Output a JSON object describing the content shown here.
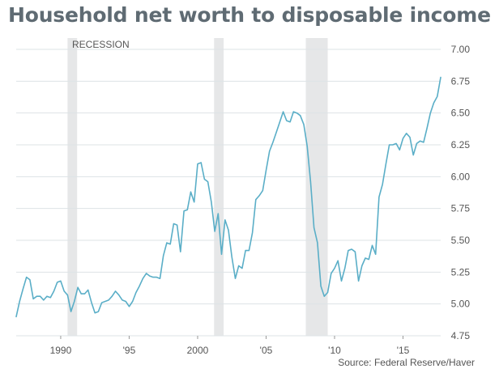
{
  "title": "Household net worth to disposable income",
  "source": "Source: Federal Reserve/Haver",
  "colors": {
    "line": "#5aaec7",
    "recession": "#e6e7e8",
    "grid": "#dde3e6",
    "title": "#5f6b73",
    "text": "#555555"
  },
  "chart_data": {
    "type": "line",
    "title": "Household net worth to disposable income",
    "xlabel": "",
    "ylabel": "",
    "xlim": [
      1986.75,
      2017.75
    ],
    "ylim": [
      4.75,
      7.0
    ],
    "grid": true,
    "x_ticks": [
      {
        "value": 1990,
        "label": "1990"
      },
      {
        "value": 1995,
        "label": "'95"
      },
      {
        "value": 2000,
        "label": "2000"
      },
      {
        "value": 2005,
        "label": "'05"
      },
      {
        "value": 2010,
        "label": "'10"
      },
      {
        "value": 2015,
        "label": "'15"
      }
    ],
    "y_ticks": [
      {
        "value": 4.75,
        "label": "4.75"
      },
      {
        "value": 5.0,
        "label": "5.00"
      },
      {
        "value": 5.25,
        "label": "5.25"
      },
      {
        "value": 5.5,
        "label": "5.50"
      },
      {
        "value": 5.75,
        "label": "5.75"
      },
      {
        "value": 6.0,
        "label": "6.00"
      },
      {
        "value": 6.25,
        "label": "6.25"
      },
      {
        "value": 6.5,
        "label": "6.50"
      },
      {
        "value": 6.75,
        "label": "6.75"
      },
      {
        "value": 7.0,
        "label": "7.00"
      }
    ],
    "recession_label": "RECESSION",
    "recessions": [
      {
        "start": 1990.5,
        "end": 1991.2
      },
      {
        "start": 2001.2,
        "end": 2001.9
      },
      {
        "start": 2007.9,
        "end": 2009.5
      }
    ],
    "series": [
      {
        "name": "Household net worth to disposable income",
        "points": [
          [
            1986.75,
            4.9
          ],
          [
            1987.0,
            5.02
          ],
          [
            1987.25,
            5.12
          ],
          [
            1987.5,
            5.21
          ],
          [
            1987.75,
            5.19
          ],
          [
            1988.0,
            5.04
          ],
          [
            1988.25,
            5.06
          ],
          [
            1988.5,
            5.06
          ],
          [
            1988.75,
            5.03
          ],
          [
            1989.0,
            5.06
          ],
          [
            1989.25,
            5.05
          ],
          [
            1989.5,
            5.1
          ],
          [
            1989.75,
            5.17
          ],
          [
            1990.0,
            5.18
          ],
          [
            1990.25,
            5.1
          ],
          [
            1990.5,
            5.07
          ],
          [
            1990.75,
            4.94
          ],
          [
            1991.0,
            5.02
          ],
          [
            1991.25,
            5.13
          ],
          [
            1991.5,
            5.08
          ],
          [
            1991.75,
            5.08
          ],
          [
            1992.0,
            5.11
          ],
          [
            1992.25,
            5.01
          ],
          [
            1992.5,
            4.93
          ],
          [
            1992.75,
            4.94
          ],
          [
            1993.0,
            5.01
          ],
          [
            1993.25,
            5.02
          ],
          [
            1993.5,
            5.03
          ],
          [
            1993.75,
            5.06
          ],
          [
            1994.0,
            5.1
          ],
          [
            1994.25,
            5.07
          ],
          [
            1994.5,
            5.03
          ],
          [
            1994.75,
            5.02
          ],
          [
            1995.0,
            4.98
          ],
          [
            1995.25,
            5.02
          ],
          [
            1995.5,
            5.09
          ],
          [
            1995.75,
            5.14
          ],
          [
            1996.0,
            5.2
          ],
          [
            1996.25,
            5.24
          ],
          [
            1996.5,
            5.22
          ],
          [
            1996.75,
            5.21
          ],
          [
            1997.0,
            5.21
          ],
          [
            1997.25,
            5.2
          ],
          [
            1997.5,
            5.38
          ],
          [
            1997.75,
            5.48
          ],
          [
            1998.0,
            5.47
          ],
          [
            1998.25,
            5.63
          ],
          [
            1998.5,
            5.62
          ],
          [
            1998.75,
            5.41
          ],
          [
            1999.0,
            5.73
          ],
          [
            1999.25,
            5.74
          ],
          [
            1999.5,
            5.88
          ],
          [
            1999.75,
            5.8
          ],
          [
            2000.0,
            6.1
          ],
          [
            2000.25,
            6.11
          ],
          [
            2000.5,
            5.98
          ],
          [
            2000.75,
            5.96
          ],
          [
            2001.0,
            5.8
          ],
          [
            2001.25,
            5.57
          ],
          [
            2001.5,
            5.71
          ],
          [
            2001.75,
            5.39
          ],
          [
            2002.0,
            5.66
          ],
          [
            2002.25,
            5.58
          ],
          [
            2002.5,
            5.37
          ],
          [
            2002.75,
            5.2
          ],
          [
            2003.0,
            5.3
          ],
          [
            2003.25,
            5.28
          ],
          [
            2003.5,
            5.42
          ],
          [
            2003.75,
            5.42
          ],
          [
            2004.0,
            5.56
          ],
          [
            2004.25,
            5.82
          ],
          [
            2004.5,
            5.85
          ],
          [
            2004.75,
            5.89
          ],
          [
            2005.0,
            6.05
          ],
          [
            2005.25,
            6.2
          ],
          [
            2005.5,
            6.27
          ],
          [
            2005.75,
            6.35
          ],
          [
            2006.0,
            6.43
          ],
          [
            2006.25,
            6.51
          ],
          [
            2006.5,
            6.44
          ],
          [
            2006.75,
            6.43
          ],
          [
            2007.0,
            6.51
          ],
          [
            2007.25,
            6.5
          ],
          [
            2007.5,
            6.48
          ],
          [
            2007.75,
            6.41
          ],
          [
            2008.0,
            6.24
          ],
          [
            2008.25,
            5.96
          ],
          [
            2008.5,
            5.6
          ],
          [
            2008.75,
            5.48
          ],
          [
            2009.0,
            5.14
          ],
          [
            2009.25,
            5.06
          ],
          [
            2009.5,
            5.09
          ],
          [
            2009.75,
            5.24
          ],
          [
            2010.0,
            5.28
          ],
          [
            2010.25,
            5.34
          ],
          [
            2010.5,
            5.18
          ],
          [
            2010.75,
            5.28
          ],
          [
            2011.0,
            5.42
          ],
          [
            2011.25,
            5.43
          ],
          [
            2011.5,
            5.41
          ],
          [
            2011.75,
            5.18
          ],
          [
            2012.0,
            5.3
          ],
          [
            2012.25,
            5.36
          ],
          [
            2012.5,
            5.35
          ],
          [
            2012.75,
            5.46
          ],
          [
            2013.0,
            5.39
          ],
          [
            2013.25,
            5.84
          ],
          [
            2013.5,
            5.94
          ],
          [
            2013.75,
            6.1
          ],
          [
            2014.0,
            6.25
          ],
          [
            2014.25,
            6.25
          ],
          [
            2014.5,
            6.26
          ],
          [
            2014.75,
            6.21
          ],
          [
            2015.0,
            6.3
          ],
          [
            2015.25,
            6.34
          ],
          [
            2015.5,
            6.31
          ],
          [
            2015.75,
            6.17
          ],
          [
            2016.0,
            6.26
          ],
          [
            2016.25,
            6.28
          ],
          [
            2016.5,
            6.27
          ],
          [
            2016.75,
            6.38
          ],
          [
            2017.0,
            6.5
          ],
          [
            2017.25,
            6.58
          ],
          [
            2017.5,
            6.63
          ],
          [
            2017.75,
            6.78
          ]
        ]
      }
    ]
  }
}
